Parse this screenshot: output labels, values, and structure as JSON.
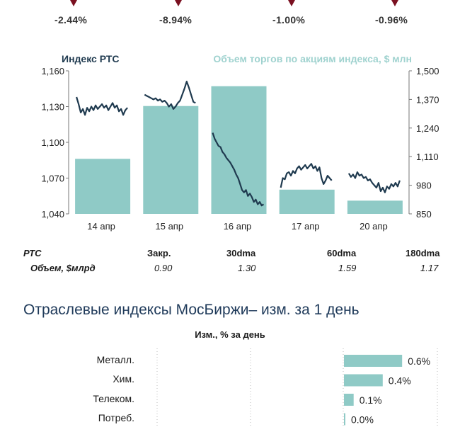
{
  "top_changes": [
    "-2.44%",
    "-8.94%",
    "-1.00%",
    "-0.96%"
  ],
  "colors": {
    "line": "#1f3a4f",
    "bars": "#8fcac6",
    "arrow": "#7a1020",
    "title_left": "#1f3a4f",
    "title_right": "#9fd2cf",
    "section_title": "#1f3a5a"
  },
  "chart_data": [
    {
      "type": "bar+line",
      "title_left": "Индекс РТС",
      "title_right": "Объем торгов по акциям индекса, $ млн",
      "categories": [
        "14 апр",
        "15 апр",
        "16 апр",
        "17 апр",
        "20 апр"
      ],
      "y_left": {
        "ticks": [
          "1,160",
          "1,130",
          "1,100",
          "1,070",
          "1,040"
        ],
        "range": [
          1040,
          1160
        ]
      },
      "y_right": {
        "ticks": [
          "1,500",
          "1,370",
          "1,240",
          "1,110",
          "980",
          "850"
        ],
        "range": [
          850,
          1500
        ]
      },
      "bar_values": [
        1100,
        1340,
        1430,
        960,
        910
      ],
      "line_segments": [
        [
          1138,
          1132,
          1125,
          1128,
          1123,
          1129,
          1126,
          1130,
          1127,
          1131,
          1128,
          1130,
          1132,
          1129,
          1131,
          1127,
          1130,
          1133,
          1129,
          1131,
          1126,
          1128,
          1123,
          1127,
          1129
        ],
        [
          1140,
          1139,
          1138,
          1137,
          1136,
          1137,
          1135,
          1136,
          1134,
          1135,
          1133,
          1130,
          1132,
          1128,
          1130,
          1133,
          1135,
          1140,
          1145,
          1151,
          1146,
          1140,
          1134,
          1133
        ],
        [
          1108,
          1103,
          1100,
          1097,
          1096,
          1092,
          1090,
          1087,
          1085,
          1083,
          1080,
          1077,
          1073,
          1070,
          1065,
          1060,
          1058,
          1060,
          1055,
          1057,
          1054,
          1050,
          1052,
          1048,
          1050,
          1047,
          1048
        ],
        [
          1062,
          1070,
          1069,
          1074,
          1075,
          1072,
          1076,
          1074,
          1078,
          1080,
          1077,
          1079,
          1081,
          1078,
          1080,
          1082,
          1078,
          1080,
          1076,
          1079,
          1070,
          1065,
          1068,
          1072,
          1070,
          1068
        ],
        [
          1074,
          1071,
          1073,
          1070,
          1075,
          1072,
          1073,
          1070,
          1071,
          1068,
          1069,
          1066,
          1064,
          1062,
          1066,
          1059,
          1062,
          1058,
          1063,
          1061,
          1065,
          1063,
          1066,
          1063,
          1068
        ]
      ]
    },
    {
      "type": "bar",
      "title": "Изм., % за день",
      "categories": [
        "Металл.",
        "Хим.",
        "Телеком.",
        "Потреб."
      ],
      "values": [
        0.6,
        0.4,
        0.1,
        0.0
      ],
      "labels": [
        "0.6%",
        "0.4%",
        "0.1%",
        "0.0%"
      ]
    }
  ],
  "summary": {
    "row1_label": "РТС",
    "headers": [
      "Закр.",
      "30dma",
      "60dma",
      "180dma"
    ],
    "row2_label": "Объем, $млрд",
    "values": [
      "0.90",
      "1.30",
      "1.59",
      "1.17"
    ]
  },
  "sectors_title": "Отраслевые индексы МосБиржи– изм. за 1 день"
}
